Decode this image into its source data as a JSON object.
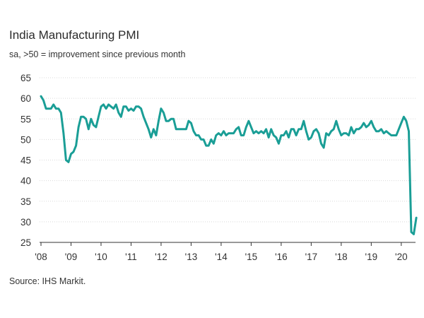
{
  "chart_data": {
    "type": "line",
    "title": "India Manufacturing PMI",
    "subtitle": "sa, >50 = improvement since previous month",
    "source": "Source: IHS Markit.",
    "xlabel": "",
    "ylabel": "",
    "ylim": [
      25,
      65
    ],
    "yticks": [
      65,
      60,
      55,
      50,
      45,
      40,
      35,
      30,
      25
    ],
    "xticks": [
      "'08",
      "'09",
      "'10",
      "'11",
      "'12",
      "'13",
      "'14",
      "'15",
      "'16",
      "'17",
      "'18",
      "'19",
      "'20"
    ],
    "grid": true,
    "line_color": "#1a9e96",
    "x_start": 2008.0,
    "x_end": 2020.3333,
    "series": [
      {
        "name": "India Manufacturing PMI",
        "x_start": 2008.0,
        "step": 0.0833333,
        "values": [
          60.5,
          59.5,
          57.5,
          57.5,
          57.5,
          58.5,
          57.5,
          57.5,
          56.5,
          51.5,
          45.0,
          44.5,
          46.5,
          47.0,
          48.5,
          53.0,
          55.5,
          55.5,
          55.0,
          52.5,
          55.0,
          53.5,
          53.0,
          55.5,
          58.0,
          58.5,
          57.5,
          58.5,
          58.0,
          57.5,
          58.5,
          56.5,
          55.5,
          58.0,
          58.0,
          57.0,
          57.5,
          57.0,
          58.0,
          58.0,
          57.5,
          55.5,
          54.0,
          52.5,
          50.5,
          52.5,
          51.0,
          54.5,
          57.5,
          56.5,
          54.5,
          54.5,
          55.0,
          55.0,
          52.5,
          52.5,
          52.5,
          52.5,
          52.5,
          54.5,
          54.0,
          52.0,
          51.0,
          51.0,
          50.0,
          50.0,
          48.5,
          48.5,
          50.0,
          49.0,
          51.0,
          51.5,
          51.0,
          52.0,
          51.0,
          51.5,
          51.5,
          51.5,
          52.5,
          53.0,
          51.0,
          51.0,
          53.0,
          54.5,
          53.0,
          51.5,
          52.0,
          51.5,
          52.0,
          51.5,
          52.5,
          50.5,
          52.5,
          51.0,
          50.5,
          49.0,
          51.0,
          51.0,
          52.0,
          50.5,
          52.5,
          52.5,
          51.0,
          52.5,
          52.5,
          54.5,
          52.0,
          50.0,
          50.5,
          52.0,
          52.5,
          51.5,
          49.0,
          48.0,
          51.5,
          51.0,
          52.0,
          52.5,
          54.5,
          52.5,
          51.0,
          51.5,
          51.5,
          51.0,
          53.0,
          51.5,
          52.5,
          52.5,
          53.0,
          54.0,
          53.0,
          53.5,
          54.5,
          53.0,
          52.0,
          52.0,
          52.5,
          51.5,
          52.0,
          51.5,
          51.0,
          51.0,
          51.0,
          52.5,
          54.0,
          55.5,
          54.5,
          52.0,
          27.5,
          27.0,
          31.0
        ]
      }
    ]
  }
}
